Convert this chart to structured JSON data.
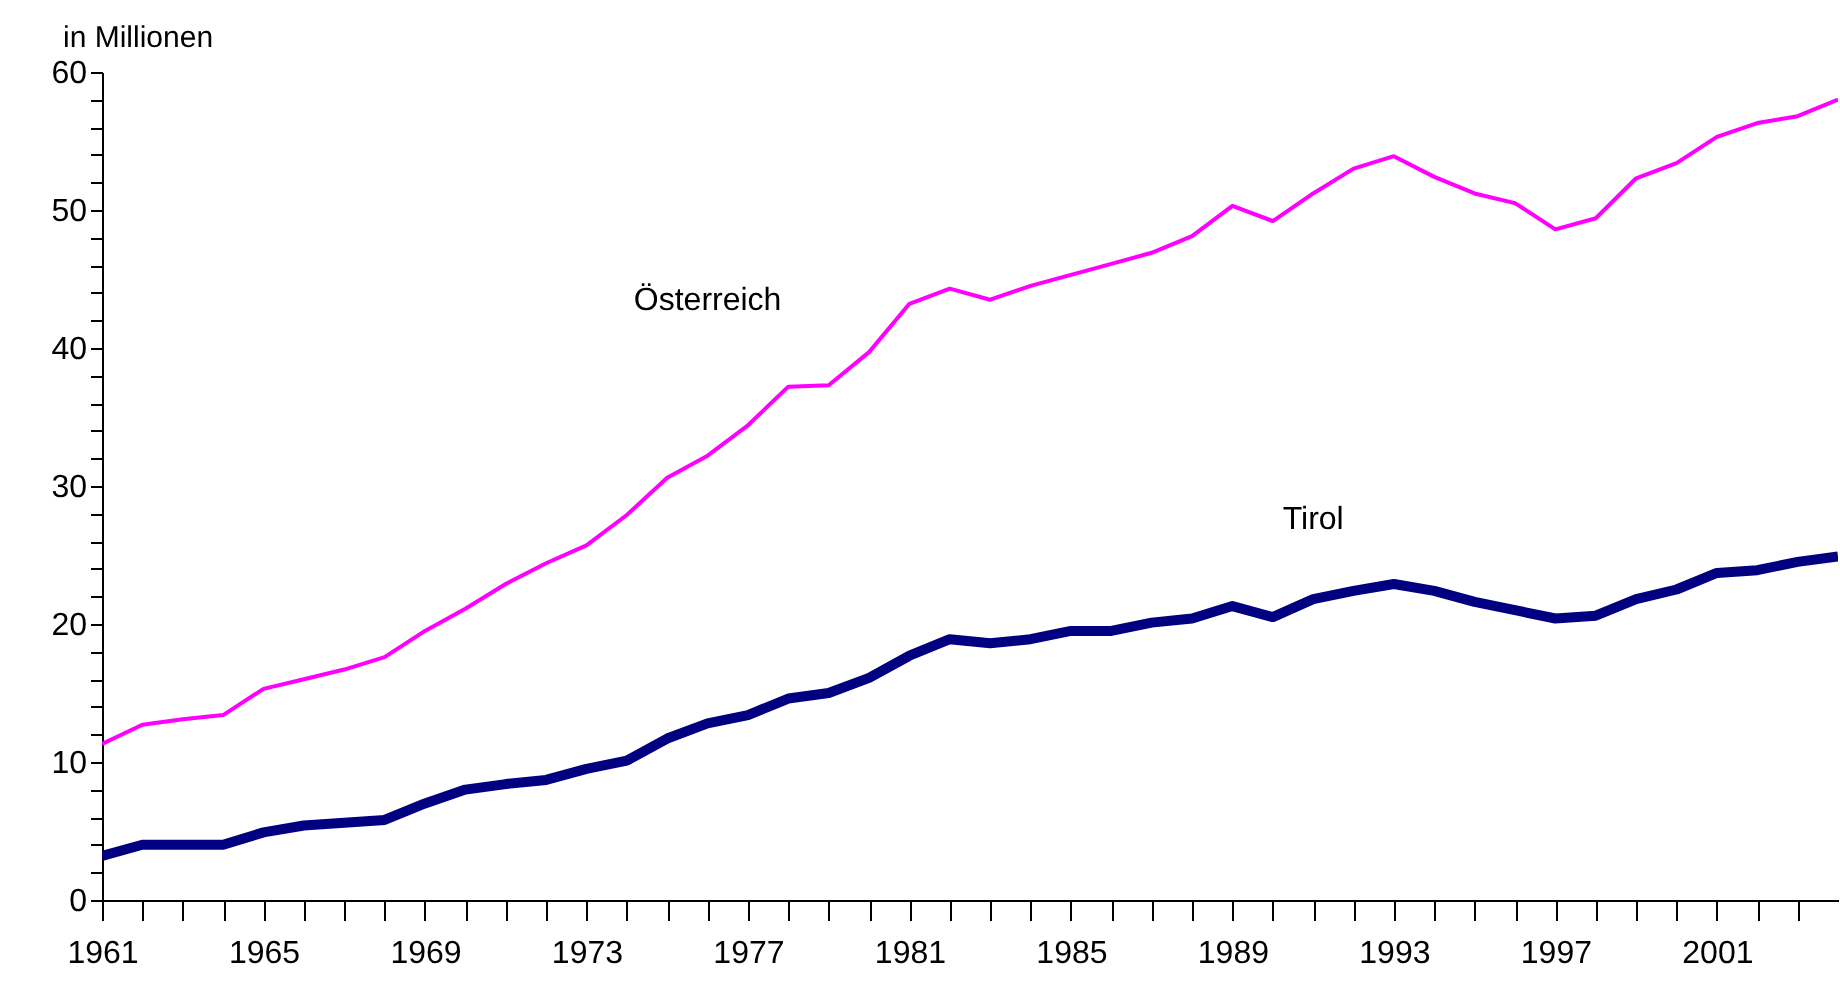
{
  "chart_data": {
    "type": "line",
    "ylabel": "in Millionen",
    "x": [
      1961,
      1962,
      1963,
      1964,
      1965,
      1966,
      1967,
      1968,
      1969,
      1970,
      1971,
      1972,
      1973,
      1974,
      1975,
      1976,
      1977,
      1978,
      1979,
      1980,
      1981,
      1982,
      1983,
      1984,
      1985,
      1986,
      1987,
      1988,
      1989,
      1990,
      1991,
      1992,
      1993,
      1994,
      1995,
      1996,
      1997,
      1998,
      1999,
      2000,
      2001,
      2002,
      2003,
      2004
    ],
    "series": [
      {
        "name": "Österreich",
        "color": "#ff00ff",
        "values": [
          11.3,
          12.7,
          13.1,
          13.4,
          15.3,
          16.0,
          16.7,
          17.6,
          19.5,
          21.1,
          22.9,
          24.4,
          25.7,
          27.9,
          30.6,
          32.2,
          34.4,
          37.2,
          37.3,
          39.7,
          43.2,
          44.3,
          43.5,
          44.5,
          45.3,
          46.1,
          46.9,
          48.1,
          50.3,
          49.2,
          51.2,
          53.0,
          53.9,
          52.4,
          51.2,
          50.5,
          48.6,
          49.4,
          52.3,
          53.4,
          55.3,
          56.3,
          56.8,
          58.0
        ]
      },
      {
        "name": "Tirol",
        "color": "#000080",
        "values": [
          3.2,
          4.0,
          4.0,
          4.0,
          4.9,
          5.4,
          5.6,
          5.8,
          7.0,
          8.0,
          8.4,
          8.7,
          9.5,
          10.1,
          11.7,
          12.8,
          13.4,
          14.6,
          15.0,
          16.1,
          17.7,
          18.9,
          18.6,
          18.9,
          19.5,
          19.5,
          20.1,
          20.4,
          21.3,
          20.5,
          21.8,
          22.4,
          22.9,
          22.4,
          21.6,
          21.0,
          20.4,
          20.6,
          21.8,
          22.5,
          23.7,
          23.9,
          24.5,
          24.9
        ]
      }
    ],
    "xlim": [
      1961,
      2004
    ],
    "xticks": [
      1961,
      {
        "value": 1962,
        "label": null
      },
      {
        "value": 1963,
        "label": null
      },
      {
        "value": 1964,
        "label": null
      },
      1965,
      {
        "value": 1966,
        "label": null
      },
      {
        "value": 1967,
        "label": null
      },
      {
        "value": 1968,
        "label": null
      },
      1969,
      {
        "value": 1970,
        "label": null
      },
      {
        "value": 1971,
        "label": null
      },
      {
        "value": 1972,
        "label": null
      },
      1973,
      {
        "value": 1974,
        "label": null
      },
      {
        "value": 1975,
        "label": null
      },
      {
        "value": 1976,
        "label": null
      },
      1977,
      {
        "value": 1978,
        "label": null
      },
      {
        "value": 1979,
        "label": null
      },
      {
        "value": 1980,
        "label": null
      },
      1981,
      {
        "value": 1982,
        "label": null
      },
      {
        "value": 1983,
        "label": null
      },
      {
        "value": 1984,
        "label": null
      },
      1985,
      {
        "value": 1986,
        "label": null
      },
      {
        "value": 1987,
        "label": null
      },
      {
        "value": 1988,
        "label": null
      },
      1989,
      {
        "value": 1990,
        "label": null
      },
      {
        "value": 1991,
        "label": null
      },
      {
        "value": 1992,
        "label": null
      },
      1993,
      {
        "value": 1994,
        "label": null
      },
      {
        "value": 1995,
        "label": null
      },
      {
        "value": 1996,
        "label": null
      },
      1997,
      {
        "value": 1998,
        "label": null
      },
      {
        "value": 1999,
        "label": null
      },
      {
        "value": 2000,
        "label": null
      },
      2001,
      {
        "value": 2002,
        "label": null
      },
      {
        "value": 2003,
        "label": null
      }
    ],
    "ylim": [
      0,
      60
    ],
    "yticks": [
      0,
      {
        "value": 2,
        "label": null
      },
      {
        "value": 4,
        "label": null
      },
      {
        "value": 6,
        "label": null
      },
      {
        "value": 8,
        "label": null
      },
      10,
      {
        "value": 12,
        "label": null
      },
      {
        "value": 14,
        "label": null
      },
      {
        "value": 16,
        "label": null
      },
      {
        "value": 18,
        "label": null
      },
      20,
      {
        "value": 22,
        "label": null
      },
      {
        "value": 24,
        "label": null
      },
      {
        "value": 26,
        "label": null
      },
      {
        "value": 28,
        "label": null
      },
      30,
      {
        "value": 32,
        "label": null
      },
      {
        "value": 34,
        "label": null
      },
      {
        "value": 36,
        "label": null
      },
      {
        "value": 38,
        "label": null
      },
      40,
      {
        "value": 42,
        "label": null
      },
      {
        "value": 44,
        "label": null
      },
      {
        "value": 46,
        "label": null
      },
      {
        "value": 48,
        "label": null
      },
      50,
      {
        "value": 52,
        "label": null
      },
      {
        "value": 54,
        "label": null
      },
      {
        "value": 56,
        "label": null
      },
      {
        "value": 58,
        "label": null
      },
      60
    ]
  }
}
